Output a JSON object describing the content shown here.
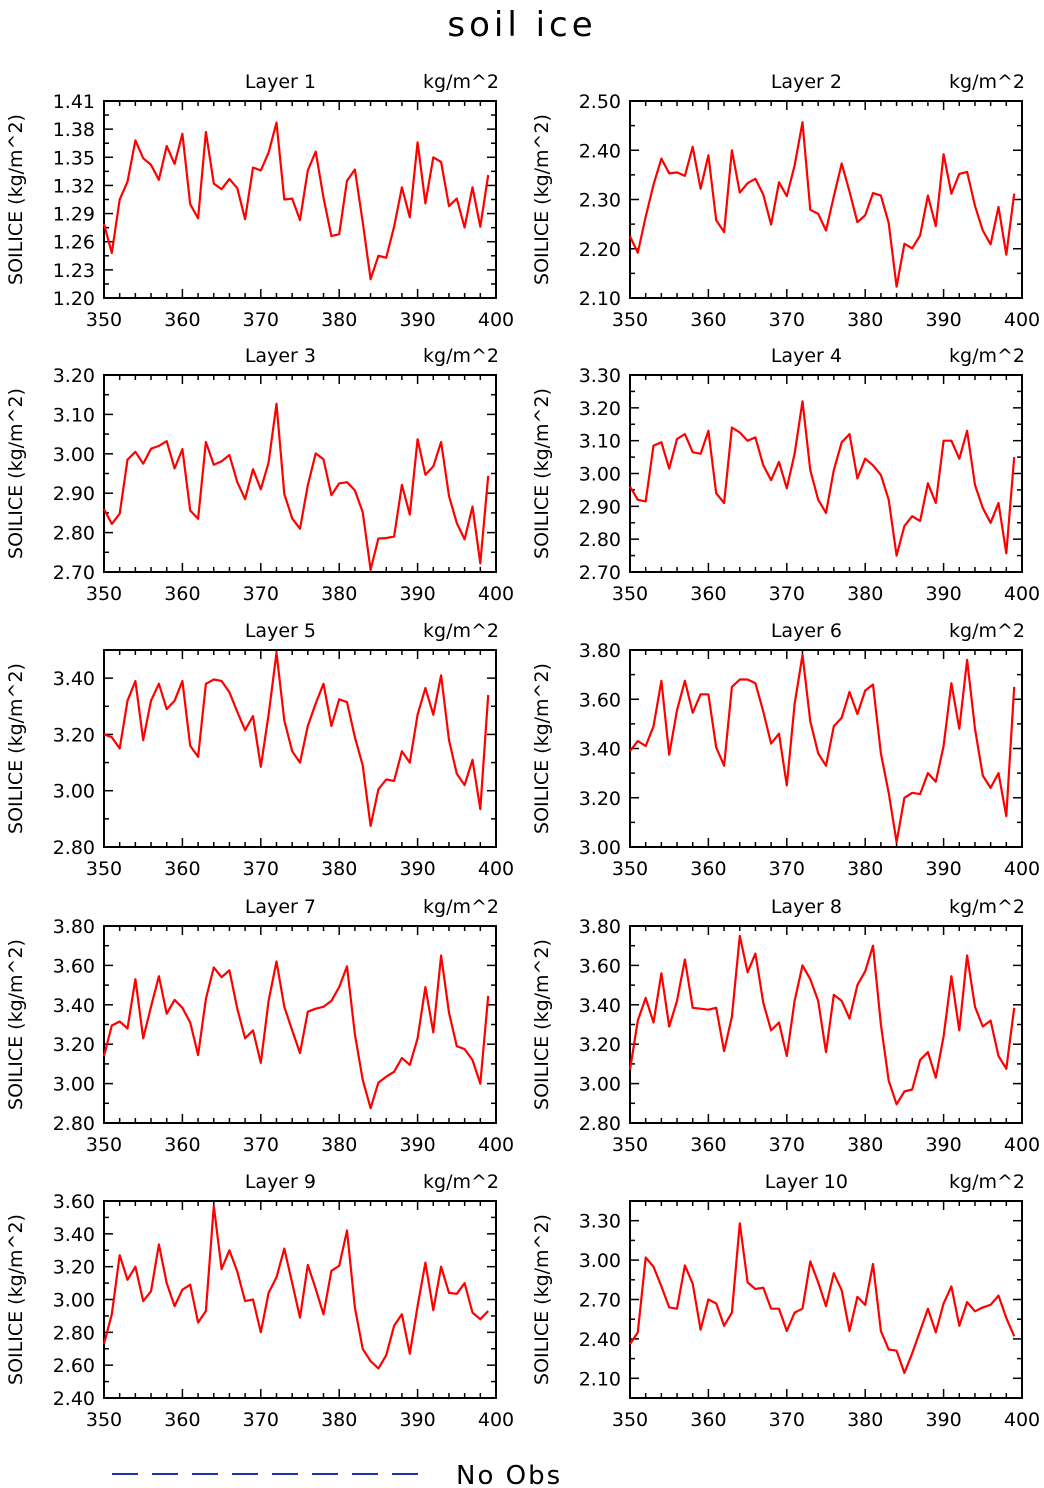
{
  "figure": {
    "title": "soil ice",
    "legend": {
      "line_style": "dashed",
      "color": "#2233aa",
      "label": "No Obs"
    }
  },
  "colors": {
    "series": "#ff0000",
    "axes": "#000000",
    "legend_line": "#2233aa"
  },
  "chart_data": [
    {
      "type": "line",
      "title": "Layer 1",
      "units": "kg/m^2",
      "ylabel": "SOILICE   (kg/m^2)",
      "xlim": [
        350,
        400
      ],
      "xticks": [
        350,
        360,
        370,
        380,
        390,
        400
      ],
      "ylim": [
        1.2,
        1.41
      ],
      "yticks": [
        "1.20",
        "1.23",
        "1.26",
        "1.29",
        "1.32",
        "1.35",
        "1.38",
        "1.41"
      ],
      "x_start": 350,
      "y": [
        1.279,
        1.248,
        1.305,
        1.324,
        1.368,
        1.349,
        1.342,
        1.326,
        1.362,
        1.343,
        1.375,
        1.3,
        1.285,
        1.377,
        1.322,
        1.316,
        1.327,
        1.317,
        1.284,
        1.339,
        1.336,
        1.355,
        1.387,
        1.305,
        1.306,
        1.283,
        1.336,
        1.356,
        1.307,
        1.266,
        1.268,
        1.325,
        1.337,
        1.281,
        1.22,
        1.245,
        1.243,
        1.276,
        1.318,
        1.286,
        1.366,
        1.301,
        1.35,
        1.345,
        1.298,
        1.306,
        1.275,
        1.318,
        1.276,
        1.331
      ]
    },
    {
      "type": "line",
      "title": "Layer 2",
      "units": "kg/m^2",
      "ylabel": "SOILICE   (kg/m^2)",
      "xlim": [
        350,
        400
      ],
      "xticks": [
        350,
        360,
        370,
        380,
        390,
        400
      ],
      "ylim": [
        2.1,
        2.5
      ],
      "yticks": [
        "2.10",
        "2.20",
        "2.30",
        "2.40",
        "2.50"
      ],
      "x_start": 350,
      "y": [
        2.225,
        2.192,
        2.265,
        2.33,
        2.383,
        2.353,
        2.355,
        2.348,
        2.407,
        2.322,
        2.39,
        2.258,
        2.234,
        2.4,
        2.314,
        2.333,
        2.342,
        2.31,
        2.249,
        2.335,
        2.307,
        2.369,
        2.457,
        2.279,
        2.271,
        2.237,
        2.306,
        2.373,
        2.316,
        2.254,
        2.268,
        2.313,
        2.308,
        2.252,
        2.123,
        2.21,
        2.201,
        2.227,
        2.308,
        2.246,
        2.392,
        2.312,
        2.352,
        2.356,
        2.287,
        2.237,
        2.209,
        2.285,
        2.188,
        2.312
      ]
    },
    {
      "type": "line",
      "title": "Layer 3",
      "units": "kg/m^2",
      "ylabel": "SOILICE   (kg/m^2)",
      "xlim": [
        350,
        400
      ],
      "xticks": [
        350,
        360,
        370,
        380,
        390,
        400
      ],
      "ylim": [
        2.7,
        3.2
      ],
      "yticks": [
        "2.70",
        "2.80",
        "2.90",
        "3.00",
        "3.10",
        "3.20"
      ],
      "x_start": 350,
      "y": [
        2.86,
        2.822,
        2.848,
        2.985,
        3.005,
        2.975,
        3.013,
        3.02,
        3.032,
        2.963,
        3.012,
        2.856,
        2.835,
        3.03,
        2.972,
        2.981,
        2.997,
        2.928,
        2.885,
        2.961,
        2.91,
        2.978,
        3.127,
        2.898,
        2.836,
        2.81,
        2.92,
        3.001,
        2.986,
        2.895,
        2.925,
        2.928,
        2.907,
        2.852,
        2.706,
        2.785,
        2.786,
        2.79,
        2.921,
        2.846,
        3.037,
        2.947,
        2.968,
        3.03,
        2.893,
        2.824,
        2.783,
        2.866,
        2.722,
        2.944
      ]
    },
    {
      "type": "line",
      "title": "Layer 4",
      "units": "kg/m^2",
      "ylabel": "SOILICE   (kg/m^2)",
      "xlim": [
        350,
        400
      ],
      "xticks": [
        350,
        360,
        370,
        380,
        390,
        400
      ],
      "ylim": [
        2.7,
        3.3
      ],
      "yticks": [
        "2.70",
        "2.80",
        "2.90",
        "3.00",
        "3.10",
        "3.20",
        "3.30"
      ],
      "x_start": 350,
      "y": [
        2.96,
        2.92,
        2.915,
        3.085,
        3.095,
        3.015,
        3.105,
        3.12,
        3.065,
        3.06,
        3.13,
        2.94,
        2.91,
        3.14,
        3.125,
        3.1,
        3.11,
        3.025,
        2.98,
        3.035,
        2.955,
        3.06,
        3.22,
        3.01,
        2.92,
        2.88,
        3.01,
        3.095,
        3.12,
        2.985,
        3.045,
        3.025,
        2.995,
        2.92,
        2.75,
        2.84,
        2.87,
        2.855,
        2.97,
        2.91,
        3.1,
        3.1,
        3.045,
        3.13,
        2.965,
        2.895,
        2.85,
        2.91,
        2.757,
        3.05
      ]
    },
    {
      "type": "line",
      "title": "Layer 5",
      "units": "kg/m^2",
      "ylabel": "SOILICE   (kg/m^2)",
      "xlim": [
        350,
        400
      ],
      "xticks": [
        350,
        360,
        370,
        380,
        390,
        400
      ],
      "ylim": [
        2.8,
        3.5
      ],
      "yticks": [
        "2.80",
        "3.00",
        "3.20",
        "3.40"
      ],
      "x_start": 350,
      "y": [
        3.2,
        3.19,
        3.15,
        3.32,
        3.39,
        3.18,
        3.32,
        3.38,
        3.29,
        3.32,
        3.39,
        3.16,
        3.12,
        3.38,
        3.395,
        3.39,
        3.35,
        3.28,
        3.215,
        3.265,
        3.085,
        3.27,
        3.49,
        3.25,
        3.14,
        3.1,
        3.23,
        3.31,
        3.38,
        3.23,
        3.325,
        3.315,
        3.19,
        3.09,
        2.875,
        3.005,
        3.04,
        3.035,
        3.14,
        3.1,
        3.27,
        3.365,
        3.27,
        3.41,
        3.18,
        3.06,
        3.02,
        3.11,
        2.935,
        3.34
      ]
    },
    {
      "type": "line",
      "title": "Layer 6",
      "units": "kg/m^2",
      "ylabel": "SOILICE   (kg/m^2)",
      "xlim": [
        350,
        400
      ],
      "xticks": [
        350,
        360,
        370,
        380,
        390,
        400
      ],
      "ylim": [
        3.0,
        3.8
      ],
      "yticks": [
        "3.00",
        "3.20",
        "3.40",
        "3.60",
        "3.80"
      ],
      "x_start": 350,
      "y": [
        3.39,
        3.43,
        3.41,
        3.49,
        3.675,
        3.375,
        3.555,
        3.675,
        3.545,
        3.62,
        3.62,
        3.405,
        3.33,
        3.65,
        3.68,
        3.68,
        3.665,
        3.55,
        3.42,
        3.46,
        3.25,
        3.58,
        3.78,
        3.51,
        3.38,
        3.33,
        3.49,
        3.525,
        3.63,
        3.54,
        3.635,
        3.66,
        3.38,
        3.22,
        3.02,
        3.2,
        3.22,
        3.215,
        3.3,
        3.265,
        3.41,
        3.665,
        3.48,
        3.76,
        3.48,
        3.29,
        3.24,
        3.3,
        3.125,
        3.65
      ]
    },
    {
      "type": "line",
      "title": "Layer 7",
      "units": "kg/m^2",
      "ylabel": "SOILICE   (kg/m^2)",
      "xlim": [
        350,
        400
      ],
      "xticks": [
        350,
        360,
        370,
        380,
        390,
        400
      ],
      "ylim": [
        2.8,
        3.8
      ],
      "yticks": [
        "2.80",
        "3.00",
        "3.20",
        "3.40",
        "3.60",
        "3.80"
      ],
      "x_start": 350,
      "y": [
        3.14,
        3.295,
        3.315,
        3.28,
        3.53,
        3.23,
        3.39,
        3.545,
        3.355,
        3.425,
        3.385,
        3.31,
        3.145,
        3.43,
        3.59,
        3.54,
        3.575,
        3.38,
        3.23,
        3.27,
        3.105,
        3.42,
        3.62,
        3.39,
        3.27,
        3.155,
        3.365,
        3.38,
        3.39,
        3.42,
        3.49,
        3.595,
        3.25,
        3.02,
        2.875,
        3.005,
        3.035,
        3.06,
        3.13,
        3.095,
        3.23,
        3.49,
        3.26,
        3.65,
        3.36,
        3.19,
        3.175,
        3.12,
        3.0,
        3.445
      ]
    },
    {
      "type": "line",
      "title": "Layer 8",
      "units": "kg/m^2",
      "ylabel": "SOILICE   (kg/m^2)",
      "xlim": [
        350,
        400
      ],
      "xticks": [
        350,
        360,
        370,
        380,
        390,
        400
      ],
      "ylim": [
        2.8,
        3.8
      ],
      "yticks": [
        "2.80",
        "3.00",
        "3.20",
        "3.40",
        "3.60",
        "3.80"
      ],
      "x_start": 350,
      "y": [
        3.07,
        3.32,
        3.435,
        3.31,
        3.56,
        3.29,
        3.42,
        3.63,
        3.385,
        3.38,
        3.375,
        3.385,
        3.165,
        3.34,
        3.75,
        3.565,
        3.66,
        3.41,
        3.27,
        3.31,
        3.14,
        3.42,
        3.6,
        3.53,
        3.42,
        3.16,
        3.45,
        3.42,
        3.33,
        3.5,
        3.57,
        3.7,
        3.3,
        3.015,
        2.895,
        2.96,
        2.97,
        3.12,
        3.16,
        3.03,
        3.24,
        3.545,
        3.27,
        3.65,
        3.39,
        3.29,
        3.32,
        3.14,
        3.075,
        3.385
      ]
    },
    {
      "type": "line",
      "title": "Layer 9",
      "units": "kg/m^2",
      "ylabel": "SOILICE   (kg/m^2)",
      "xlim": [
        350,
        400
      ],
      "xticks": [
        350,
        360,
        370,
        380,
        390,
        400
      ],
      "ylim": [
        2.4,
        3.6
      ],
      "yticks": [
        "2.40",
        "2.60",
        "2.80",
        "3.00",
        "3.20",
        "3.40",
        "3.60"
      ],
      "x_start": 350,
      "y": [
        2.73,
        2.91,
        3.27,
        3.12,
        3.2,
        2.99,
        3.05,
        3.335,
        3.1,
        2.96,
        3.06,
        3.09,
        2.86,
        2.93,
        3.57,
        3.185,
        3.3,
        3.17,
        2.99,
        3.0,
        2.8,
        3.04,
        3.135,
        3.31,
        3.1,
        2.89,
        3.21,
        3.065,
        2.91,
        3.175,
        3.205,
        3.42,
        2.95,
        2.7,
        2.625,
        2.58,
        2.66,
        2.84,
        2.91,
        2.67,
        2.96,
        3.225,
        2.935,
        3.2,
        3.04,
        3.035,
        3.1,
        2.92,
        2.88,
        2.93
      ]
    },
    {
      "type": "line",
      "title": "Layer 10",
      "units": "kg/m^2",
      "ylabel": "SOILICE   (kg/m^2)",
      "xlim": [
        350,
        400
      ],
      "xticks": [
        350,
        360,
        370,
        380,
        390,
        400
      ],
      "ylim": [
        1.95,
        3.45
      ],
      "yticks": [
        "2.10",
        "2.40",
        "2.70",
        "3.00",
        "3.30"
      ],
      "x_start": 350,
      "y": [
        2.36,
        2.45,
        3.02,
        2.95,
        2.8,
        2.64,
        2.63,
        2.96,
        2.82,
        2.47,
        2.7,
        2.67,
        2.5,
        2.6,
        3.28,
        2.83,
        2.78,
        2.79,
        2.63,
        2.63,
        2.46,
        2.6,
        2.63,
        2.99,
        2.83,
        2.65,
        2.9,
        2.77,
        2.46,
        2.72,
        2.66,
        2.97,
        2.46,
        2.32,
        2.31,
        2.14,
        2.29,
        2.46,
        2.63,
        2.45,
        2.67,
        2.8,
        2.5,
        2.68,
        2.61,
        2.64,
        2.66,
        2.73,
        2.56,
        2.42
      ]
    }
  ]
}
